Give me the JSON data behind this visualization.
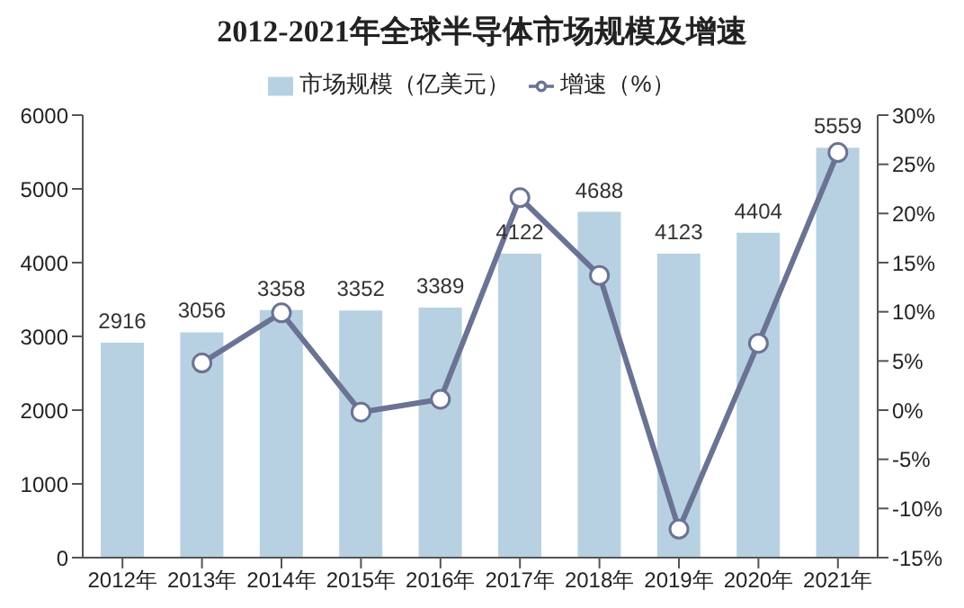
{
  "chart_data": {
    "type": "bar",
    "title": "2012-2021年全球半导体市场规模及增速",
    "categories": [
      "2012年",
      "2013年",
      "2014年",
      "2015年",
      "2016年",
      "2017年",
      "2018年",
      "2019年",
      "2020年",
      "2021年"
    ],
    "series": [
      {
        "name": "市场规模（亿美元）",
        "color": "#b7d1e2",
        "values": [
          2916,
          3056,
          3358,
          3352,
          3389,
          4122,
          4688,
          4123,
          4404,
          5559
        ],
        "data_labels": true
      },
      {
        "name": "增速（%）",
        "type": "line",
        "axis": "y2",
        "color": "#6b7394",
        "marker": "circle",
        "values": [
          null,
          4.8,
          9.9,
          -0.2,
          1.1,
          21.6,
          13.7,
          -12.1,
          6.8,
          26.2
        ]
      }
    ],
    "ylim": [
      0,
      6000
    ],
    "yticks": [
      0,
      1000,
      2000,
      3000,
      4000,
      5000,
      6000
    ],
    "y2lim": [
      -15,
      30
    ],
    "y2ticks": [
      {
        "value": -15,
        "label": "-15%"
      },
      {
        "value": -10,
        "label": "-10%"
      },
      {
        "value": -5,
        "label": "-5%"
      },
      {
        "value": 0,
        "label": "0%"
      },
      {
        "value": 5,
        "label": "5%"
      },
      {
        "value": 10,
        "label": "10%"
      },
      {
        "value": 15,
        "label": "15%"
      },
      {
        "value": 20,
        "label": "20%"
      },
      {
        "value": 25,
        "label": "25%"
      },
      {
        "value": 30,
        "label": "30%"
      }
    ],
    "grid": false,
    "legend": "top"
  }
}
